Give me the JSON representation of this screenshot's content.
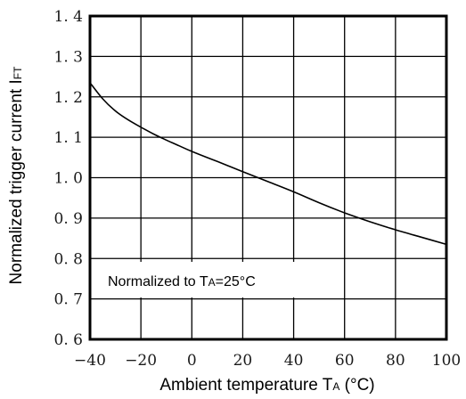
{
  "chart_data": {
    "type": "line",
    "title": "",
    "xlabel": {
      "main": "Ambient temperature T",
      "sub": "A",
      "suffix": " (°C)"
    },
    "ylabel": {
      "main": "Normalized trigger current I",
      "sub": "FT"
    },
    "annotation": {
      "prefix": "Normalized to T",
      "sub": "A",
      "suffix": "=25°C"
    },
    "xlim": [
      -40,
      100
    ],
    "ylim": [
      0.6,
      1.4
    ],
    "x_ticks": [
      -40,
      -20,
      0,
      20,
      40,
      60,
      80,
      100
    ],
    "x_tick_labels": [
      "−40",
      "−20",
      "0",
      "20",
      "40",
      "60",
      "80",
      "100"
    ],
    "y_ticks": [
      0.6,
      0.7,
      0.8,
      0.9,
      1.0,
      1.1,
      1.2,
      1.3,
      1.4
    ],
    "y_tick_labels": [
      "0. 6",
      "0. 7",
      "0. 8",
      "0. 9",
      "1. 0",
      "1. 1",
      "1. 2",
      "1. 3",
      "1. 4"
    ],
    "grid": true,
    "series": [
      {
        "x": [
          -40,
          -35,
          -30,
          -25,
          -20,
          -15,
          -10,
          -5,
          0,
          10,
          20,
          30,
          40,
          50,
          60,
          70,
          80,
          90,
          100
        ],
        "y": [
          1.235,
          1.195,
          1.165,
          1.143,
          1.125,
          1.108,
          1.093,
          1.079,
          1.065,
          1.04,
          1.015,
          0.99,
          0.965,
          0.938,
          0.913,
          0.891,
          0.871,
          0.853,
          0.835
        ]
      }
    ],
    "colors": {
      "line": "#000000",
      "grid": "#000000"
    }
  }
}
